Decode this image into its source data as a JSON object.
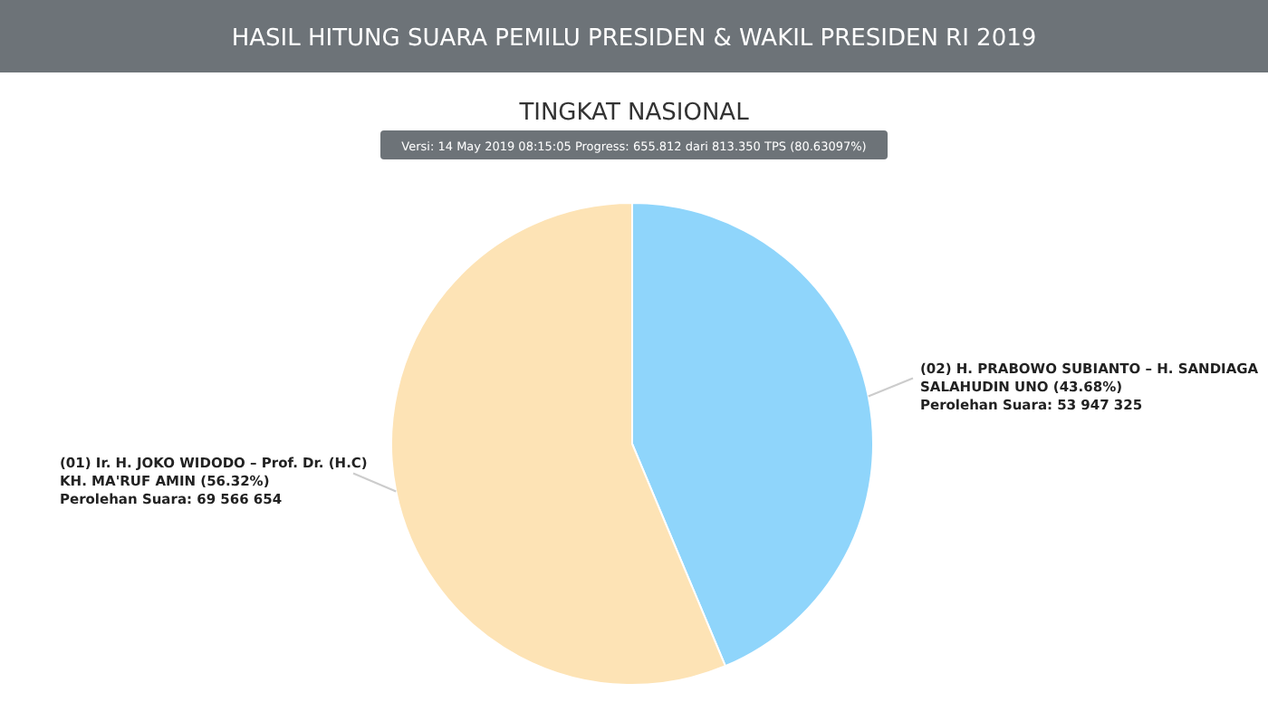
{
  "chart_data": {
    "type": "pie",
    "title": "HASIL HITUNG SUARA PEMILU PRESIDEN & WAKIL PRESIDEN RI 2019",
    "subtitle": "TINGKAT NASIONAL",
    "annotations": [
      "Versi: 14 May 2019 08:15:05 Progress: 655.812 dari 813.350 TPS (80.63097%)"
    ],
    "categories": [
      "(02) H. PRABOWO SUBIANTO – H. SANDIAGA SALAHUDIN UNO (43.68%)",
      "(01) Ir. H. JOKO WIDODO – Prof. Dr. (H.C) KH. MA'RUF AMIN (56.32%)"
    ],
    "values": [
      53947325,
      69566654
    ],
    "value_labels": [
      "Perolehan Suara: 53 947 325",
      "Perolehan Suara: 69 566 654"
    ],
    "colors": [
      "#8fd5fb",
      "#fde3b5"
    ]
  }
}
